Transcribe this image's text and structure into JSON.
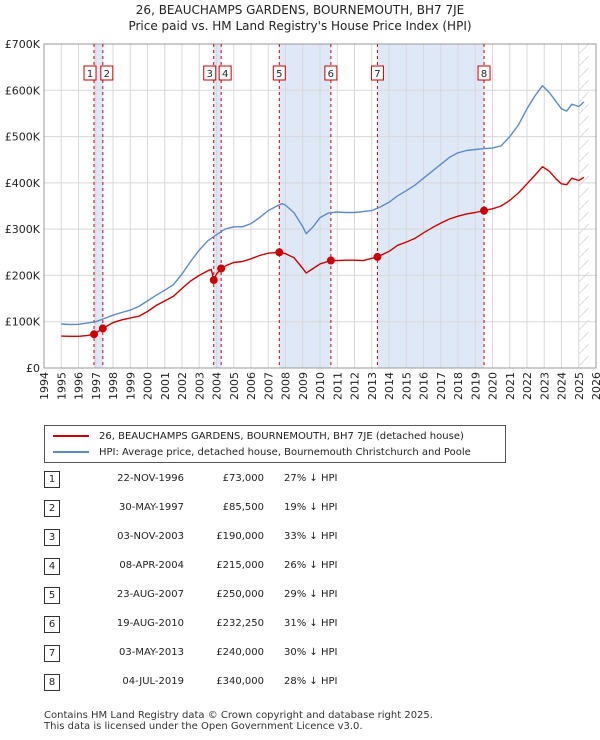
{
  "title_line1": "26, BEAUCHAMPS GARDENS, BOURNEMOUTH, BH7 7JE",
  "title_line2": "Price paid vs. HM Land Registry's House Price Index (HPI)",
  "colors": {
    "hpi": "#5b8cc8",
    "property": "#cc0000",
    "shade": "#dfe8f7",
    "grid": "#d8d8d8"
  },
  "chart_data": {
    "type": "line",
    "xlim": [
      1994,
      2026
    ],
    "ylim": [
      0,
      700000
    ],
    "y_ticks": [
      0,
      100000,
      200000,
      300000,
      400000,
      500000,
      600000,
      700000
    ],
    "y_tick_labels": [
      "£0",
      "£100K",
      "£200K",
      "£300K",
      "£400K",
      "£500K",
      "£600K",
      "£700K"
    ],
    "x_ticks": [
      1994,
      1995,
      1996,
      1997,
      1998,
      1999,
      2000,
      2001,
      2002,
      2003,
      2004,
      2005,
      2006,
      2007,
      2008,
      2009,
      2010,
      2011,
      2012,
      2013,
      2014,
      2015,
      2016,
      2017,
      2018,
      2019,
      2020,
      2021,
      2022,
      2023,
      2024,
      2025,
      2026
    ],
    "x_tick_labels": [
      "1994",
      "1995",
      "1996",
      "1997",
      "1998",
      "1999",
      "2000",
      "2001",
      "2002",
      "2003",
      "2004",
      "2005",
      "2006",
      "2007",
      "2008",
      "2009",
      "2010",
      "2011",
      "2012",
      "2013",
      "2014",
      "2015",
      "2016",
      "2017",
      "2018",
      "2019",
      "2020",
      "2021",
      "2022",
      "2023",
      "2024",
      "2025",
      "2026"
    ],
    "shaded_ranges": [
      [
        1996.9,
        1997.41
      ],
      [
        2003.84,
        2004.27
      ],
      [
        2007.64,
        2010.63
      ],
      [
        2013.33,
        2019.51
      ]
    ],
    "series": [
      {
        "name": "26, BEAUCHAMPS GARDENS, BOURNEMOUTH, BH7 7JE (detached house)",
        "color": "#cc0000",
        "points": [
          [
            1995.0,
            69000
          ],
          [
            1995.5,
            68500
          ],
          [
            1996.0,
            68500
          ],
          [
            1996.5,
            70000
          ],
          [
            1996.9,
            73000
          ],
          [
            1997.41,
            85500
          ],
          [
            1998.0,
            98000
          ],
          [
            1998.5,
            104000
          ],
          [
            1999.0,
            108000
          ],
          [
            1999.5,
            112000
          ],
          [
            2000.0,
            122000
          ],
          [
            2000.5,
            135000
          ],
          [
            2001.0,
            145000
          ],
          [
            2001.5,
            155000
          ],
          [
            2002.0,
            172000
          ],
          [
            2002.5,
            188000
          ],
          [
            2003.0,
            200000
          ],
          [
            2003.5,
            210000
          ],
          [
            2003.7,
            213000
          ],
          [
            2003.84,
            190000
          ],
          [
            2004.0,
            203000
          ],
          [
            2004.27,
            215000
          ],
          [
            2004.6,
            222000
          ],
          [
            2005.0,
            228000
          ],
          [
            2005.5,
            230000
          ],
          [
            2006.0,
            236000
          ],
          [
            2006.5,
            243000
          ],
          [
            2007.0,
            248000
          ],
          [
            2007.64,
            250000
          ],
          [
            2008.0,
            247000
          ],
          [
            2008.5,
            238000
          ],
          [
            2009.0,
            215000
          ],
          [
            2009.2,
            205000
          ],
          [
            2009.6,
            215000
          ],
          [
            2010.0,
            225000
          ],
          [
            2010.63,
            232250
          ],
          [
            2011.0,
            232000
          ],
          [
            2011.5,
            233000
          ],
          [
            2012.0,
            233000
          ],
          [
            2012.5,
            232000
          ],
          [
            2013.33,
            240000
          ],
          [
            2014.0,
            252000
          ],
          [
            2014.5,
            265000
          ],
          [
            2015.0,
            272000
          ],
          [
            2015.5,
            280000
          ],
          [
            2016.0,
            292000
          ],
          [
            2016.5,
            303000
          ],
          [
            2017.0,
            313000
          ],
          [
            2017.5,
            322000
          ],
          [
            2018.0,
            328000
          ],
          [
            2018.5,
            333000
          ],
          [
            2019.0,
            336000
          ],
          [
            2019.51,
            340000
          ],
          [
            2020.0,
            344000
          ],
          [
            2020.5,
            350000
          ],
          [
            2021.0,
            362000
          ],
          [
            2021.5,
            378000
          ],
          [
            2022.0,
            398000
          ],
          [
            2022.5,
            418000
          ],
          [
            2022.9,
            435000
          ],
          [
            2023.3,
            425000
          ],
          [
            2023.7,
            408000
          ],
          [
            2024.0,
            398000
          ],
          [
            2024.3,
            396000
          ],
          [
            2024.6,
            410000
          ],
          [
            2025.0,
            405000
          ],
          [
            2025.3,
            412000
          ]
        ]
      },
      {
        "name": "HPI: Average price, detached house, Bournemouth Christchurch and Poole",
        "color": "#5b8cc8",
        "points": [
          [
            1995.0,
            95000
          ],
          [
            1995.5,
            94000
          ],
          [
            1996.0,
            94500
          ],
          [
            1996.5,
            97000
          ],
          [
            1997.0,
            100000
          ],
          [
            1997.5,
            107000
          ],
          [
            1998.0,
            114000
          ],
          [
            1998.5,
            120000
          ],
          [
            1999.0,
            125000
          ],
          [
            1999.5,
            133000
          ],
          [
            2000.0,
            145000
          ],
          [
            2000.5,
            157000
          ],
          [
            2001.0,
            168000
          ],
          [
            2001.5,
            180000
          ],
          [
            2002.0,
            203000
          ],
          [
            2002.5,
            230000
          ],
          [
            2003.0,
            255000
          ],
          [
            2003.5,
            275000
          ],
          [
            2004.0,
            288000
          ],
          [
            2004.5,
            300000
          ],
          [
            2005.0,
            305000
          ],
          [
            2005.5,
            305000
          ],
          [
            2006.0,
            312000
          ],
          [
            2006.5,
            325000
          ],
          [
            2007.0,
            340000
          ],
          [
            2007.5,
            350000
          ],
          [
            2007.8,
            355000
          ],
          [
            2008.0,
            352000
          ],
          [
            2008.5,
            335000
          ],
          [
            2009.0,
            305000
          ],
          [
            2009.2,
            290000
          ],
          [
            2009.6,
            305000
          ],
          [
            2010.0,
            325000
          ],
          [
            2010.5,
            335000
          ],
          [
            2011.0,
            337000
          ],
          [
            2011.5,
            336000
          ],
          [
            2012.0,
            336000
          ],
          [
            2012.5,
            338000
          ],
          [
            2013.0,
            340000
          ],
          [
            2013.5,
            348000
          ],
          [
            2014.0,
            358000
          ],
          [
            2014.5,
            372000
          ],
          [
            2015.0,
            383000
          ],
          [
            2015.5,
            395000
          ],
          [
            2016.0,
            410000
          ],
          [
            2016.5,
            425000
          ],
          [
            2017.0,
            440000
          ],
          [
            2017.5,
            455000
          ],
          [
            2018.0,
            465000
          ],
          [
            2018.5,
            470000
          ],
          [
            2019.0,
            472000
          ],
          [
            2019.5,
            474000
          ],
          [
            2020.0,
            475000
          ],
          [
            2020.5,
            480000
          ],
          [
            2021.0,
            500000
          ],
          [
            2021.5,
            525000
          ],
          [
            2022.0,
            560000
          ],
          [
            2022.5,
            590000
          ],
          [
            2022.9,
            610000
          ],
          [
            2023.3,
            595000
          ],
          [
            2023.7,
            575000
          ],
          [
            2024.0,
            560000
          ],
          [
            2024.3,
            555000
          ],
          [
            2024.6,
            570000
          ],
          [
            2025.0,
            565000
          ],
          [
            2025.3,
            575000
          ]
        ]
      }
    ],
    "sales": [
      {
        "num": "1",
        "x": 1996.9,
        "y": 73000
      },
      {
        "num": "2",
        "x": 1997.41,
        "y": 85500
      },
      {
        "num": "3",
        "x": 2003.84,
        "y": 190000
      },
      {
        "num": "4",
        "x": 2004.27,
        "y": 215000
      },
      {
        "num": "5",
        "x": 2007.64,
        "y": 250000
      },
      {
        "num": "6",
        "x": 2010.63,
        "y": 232250
      },
      {
        "num": "7",
        "x": 2013.33,
        "y": 240000
      },
      {
        "num": "8",
        "x": 2019.51,
        "y": 340000
      }
    ]
  },
  "legend": {
    "property_label": "26, BEAUCHAMPS GARDENS, BOURNEMOUTH, BH7 7JE (detached house)",
    "hpi_label": "HPI: Average price, detached house, Bournemouth Christchurch and Poole"
  },
  "sales_table": [
    {
      "num": "1",
      "date": "22-NOV-1996",
      "price": "£73,000",
      "hpi": "27% ↓ HPI"
    },
    {
      "num": "2",
      "date": "30-MAY-1997",
      "price": "£85,500",
      "hpi": "19% ↓ HPI"
    },
    {
      "num": "3",
      "date": "03-NOV-2003",
      "price": "£190,000",
      "hpi": "33% ↓ HPI"
    },
    {
      "num": "4",
      "date": "08-APR-2004",
      "price": "£215,000",
      "hpi": "26% ↓ HPI"
    },
    {
      "num": "5",
      "date": "23-AUG-2007",
      "price": "£250,000",
      "hpi": "29% ↓ HPI"
    },
    {
      "num": "6",
      "date": "19-AUG-2010",
      "price": "£232,250",
      "hpi": "31% ↓ HPI"
    },
    {
      "num": "7",
      "date": "03-MAY-2013",
      "price": "£240,000",
      "hpi": "30% ↓ HPI"
    },
    {
      "num": "8",
      "date": "04-JUL-2019",
      "price": "£340,000",
      "hpi": "28% ↓ HPI"
    }
  ],
  "footer": {
    "line1": "Contains HM Land Registry data © Crown copyright and database right 2025.",
    "line2": "This data is licensed under the Open Government Licence v3.0."
  }
}
